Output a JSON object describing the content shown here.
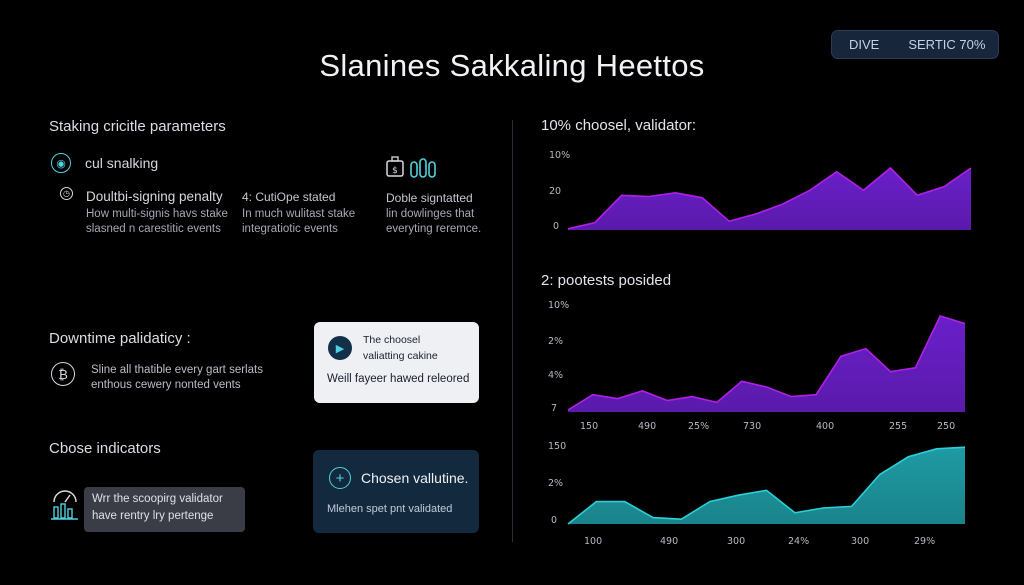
{
  "badge": {
    "left": "DIVE",
    "right": "SERTIC 70%"
  },
  "page_title": "Slanines Sakkaling Heettos",
  "section1": {
    "heading": "Staking cricitle parameters",
    "item1_label": "cul snalking",
    "col1": {
      "title": "Doultbi-signing penalty",
      "desc1": "How multi-signis havs stake",
      "desc2": "slasned n carestitic events"
    },
    "col2": {
      "title": "4: CutiOpe stated",
      "desc1": "In much wulitast stake",
      "desc2": "integratiotic events"
    },
    "col3": {
      "title": "Doble signtatted",
      "desc1": "lin dowlinges that",
      "desc2": "everyting reremce."
    }
  },
  "section2": {
    "heading": "Downtime palidaticy :",
    "desc1": "Sline all thatible every gart serlats",
    "desc2": "enthous cewery nonted vents",
    "card": {
      "line1": "The choosel",
      "line2": "valiatting cakine",
      "line3": "Weill fayeer hawed releored"
    }
  },
  "section3": {
    "heading": "Cbose indicators",
    "gray_box": {
      "line1": "Wrr the scoopirg validator",
      "line2": "have rentry lry pertenge"
    },
    "dark_card": {
      "title": "Chosen vallutine.",
      "sub": "Mlehen spet pnt validated"
    }
  },
  "colors": {
    "purple": "#6a1fc9",
    "purple_line": "#b21fe8",
    "teal": "#1f9aa3",
    "teal_line": "#2ad0d8",
    "accent_cyan": "#4fd1e0"
  },
  "icons": [
    "coin-ring-icon",
    "clock-icon",
    "briefcase-icon",
    "bars-icon",
    "bitcoin-icon",
    "play-icon",
    "plus-circle-icon",
    "gauge-icon"
  ],
  "chart_data": [
    {
      "type": "area",
      "title": "10% choosel, validator:",
      "yticks": [
        "10%",
        "20",
        "0"
      ],
      "ylim": [
        0,
        100
      ],
      "values": [
        2,
        12,
        56,
        54,
        60,
        52,
        14,
        26,
        42,
        64,
        94,
        64,
        100,
        56,
        70,
        100
      ]
    },
    {
      "type": "area",
      "title": "2: pootests posided",
      "yticks": [
        "10%",
        "2%",
        "4%",
        "7"
      ],
      "xticks": [
        "150",
        "490",
        "25%",
        "730",
        "400",
        "255",
        "250"
      ],
      "ylim": [
        0,
        100
      ],
      "values": [
        2,
        18,
        14,
        22,
        12,
        16,
        10,
        32,
        26,
        16,
        18,
        58,
        66,
        42,
        46,
        100,
        92
      ]
    },
    {
      "type": "area",
      "title": "",
      "yticks": [
        "150",
        "2%",
        "0"
      ],
      "xticks": [
        "100",
        "490",
        "300",
        "24%",
        "300",
        "29%"
      ],
      "ylim": [
        0,
        100
      ],
      "values": [
        0,
        28,
        28,
        8,
        6,
        28,
        36,
        42,
        14,
        20,
        22,
        62,
        84,
        94,
        96
      ]
    }
  ]
}
